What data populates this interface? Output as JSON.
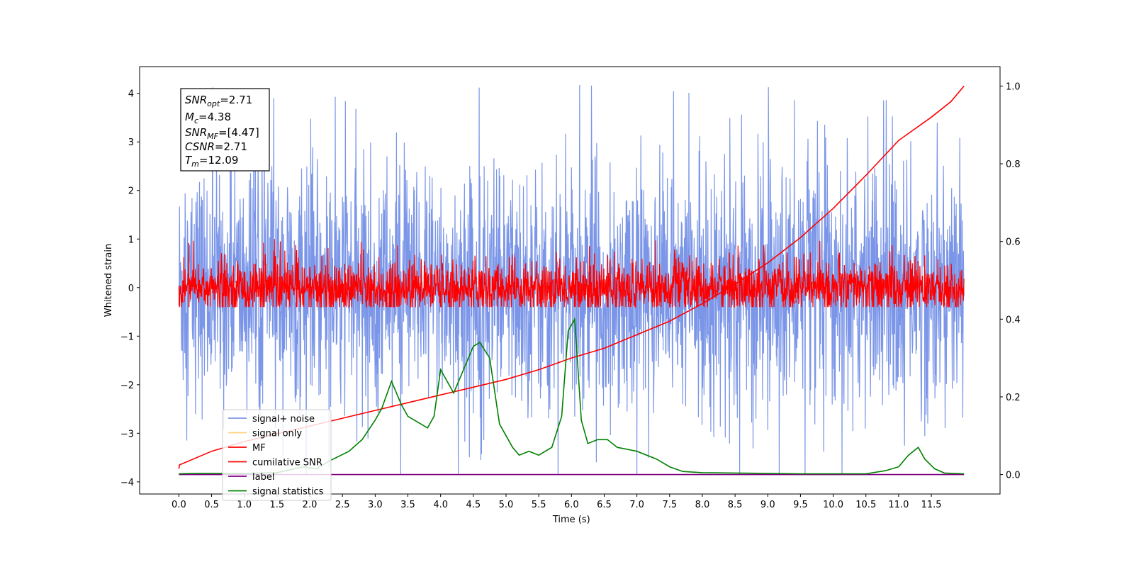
{
  "chart_data": {
    "type": "line",
    "xlabel": "Time (s)",
    "ylabel": "Whitened strain",
    "xlim": [
      -0.6,
      12.55
    ],
    "ylim": [
      -4.25,
      4.55
    ],
    "y2lim": [
      -0.05,
      1.05
    ],
    "x_ticks": [
      "0.0",
      "0.5",
      "1.0",
      "1.5",
      "2.0",
      "2.5",
      "3.0",
      "3.5",
      "4.0",
      "4.5",
      "5.0",
      "5.5",
      "6.0",
      "6.5",
      "7.0",
      "7.5",
      "8.0",
      "8.5",
      "9.0",
      "9.5",
      "10.0",
      "10.5",
      "11.0",
      "11.5"
    ],
    "y_ticks": [
      "4",
      "3",
      "2",
      "1",
      "0",
      "−1",
      "−2",
      "−3",
      "−4"
    ],
    "y2_ticks": [
      "1.0",
      "0.8",
      "0.6",
      "0.4",
      "0.2",
      "0.0"
    ],
    "info_box": {
      "snr_opt": {
        "base": "SNR",
        "sub": "opt",
        "value": "=2.71"
      },
      "mc": {
        "base": "M",
        "sub": "c",
        "value": "=4.38"
      },
      "snr_mf": {
        "base": "SNR",
        "sub": "MF",
        "value": "=[4.47]"
      },
      "csnr": {
        "base": "CSNR",
        "sub": "",
        "value": "=2.71"
      },
      "tm": {
        "base": "T",
        "sub": "m",
        "value": "=12.09"
      }
    },
    "legend": {
      "placement": "lower-left",
      "entries": [
        {
          "label": "signal+ noise",
          "color": "#7b96e8"
        },
        {
          "label": "signal only",
          "color": "#ffd07a"
        },
        {
          "label": "MF",
          "color": "#ff0000"
        },
        {
          "label": "cumilative SNR",
          "color": "#ff0000"
        },
        {
          "label": "label",
          "color": "#800080"
        },
        {
          "label": "signal statistics",
          "color": "#008000"
        }
      ]
    },
    "series": [
      {
        "name": "signal+ noise",
        "axis": "left",
        "color": "#7b96e8",
        "style": "dense-noise",
        "x_range": [
          0,
          12.0
        ],
        "center": 0.0,
        "band": [
          -1.6,
          1.6
        ],
        "peak_max": 4.17,
        "peak_min": -3.85
      },
      {
        "name": "MF",
        "axis": "left",
        "color": "#ff0000",
        "style": "dense-noise",
        "x_range": [
          0,
          12.0
        ],
        "center": 0.0,
        "band": [
          -0.35,
          0.35
        ],
        "peak_max": 1.0,
        "peak_min": -0.4
      },
      {
        "name": "cumilative SNR",
        "axis": "right",
        "color": "#ff0000",
        "x": [
          0.0,
          0.01,
          0.5,
          1.0,
          1.5,
          2.0,
          2.5,
          3.0,
          3.5,
          4.0,
          4.5,
          5.0,
          5.5,
          6.0,
          6.5,
          7.0,
          7.5,
          8.0,
          8.5,
          9.0,
          9.5,
          10.0,
          10.5,
          11.0,
          11.5,
          11.8,
          12.0
        ],
        "y": [
          0.015,
          0.025,
          0.06,
          0.085,
          0.105,
          0.125,
          0.145,
          0.165,
          0.185,
          0.205,
          0.225,
          0.245,
          0.27,
          0.3,
          0.325,
          0.36,
          0.395,
          0.44,
          0.49,
          0.545,
          0.61,
          0.685,
          0.77,
          0.86,
          0.92,
          0.96,
          1.0
        ]
      },
      {
        "name": "label",
        "axis": "right",
        "color": "#800080",
        "x": [
          0.0,
          12.0
        ],
        "y": [
          0.0,
          0.0
        ]
      },
      {
        "name": "signal statistics",
        "axis": "right",
        "color": "#008000",
        "x": [
          0.0,
          0.3,
          0.5,
          1.0,
          1.5,
          1.9,
          2.1,
          2.3,
          2.6,
          2.8,
          3.0,
          3.1,
          3.25,
          3.4,
          3.5,
          3.6,
          3.8,
          3.9,
          4.0,
          4.2,
          4.35,
          4.5,
          4.6,
          4.75,
          4.9,
          5.0,
          5.1,
          5.2,
          5.35,
          5.5,
          5.7,
          5.85,
          5.95,
          6.05,
          6.15,
          6.25,
          6.4,
          6.55,
          6.7,
          7.0,
          7.3,
          7.5,
          7.7,
          8.0,
          8.5,
          9.0,
          9.5,
          10.0,
          10.5,
          10.8,
          11.0,
          11.15,
          11.3,
          11.4,
          11.55,
          11.7,
          12.0
        ],
        "y": [
          0.002,
          0.003,
          0.003,
          0.003,
          0.005,
          0.02,
          0.015,
          0.035,
          0.06,
          0.09,
          0.14,
          0.17,
          0.24,
          0.18,
          0.15,
          0.14,
          0.12,
          0.15,
          0.27,
          0.21,
          0.27,
          0.33,
          0.34,
          0.3,
          0.13,
          0.1,
          0.07,
          0.05,
          0.06,
          0.05,
          0.07,
          0.15,
          0.37,
          0.4,
          0.14,
          0.08,
          0.09,
          0.09,
          0.07,
          0.06,
          0.04,
          0.02,
          0.008,
          0.005,
          0.004,
          0.003,
          0.002,
          0.002,
          0.002,
          0.01,
          0.02,
          0.05,
          0.07,
          0.04,
          0.015,
          0.004,
          0.002
        ]
      }
    ]
  }
}
